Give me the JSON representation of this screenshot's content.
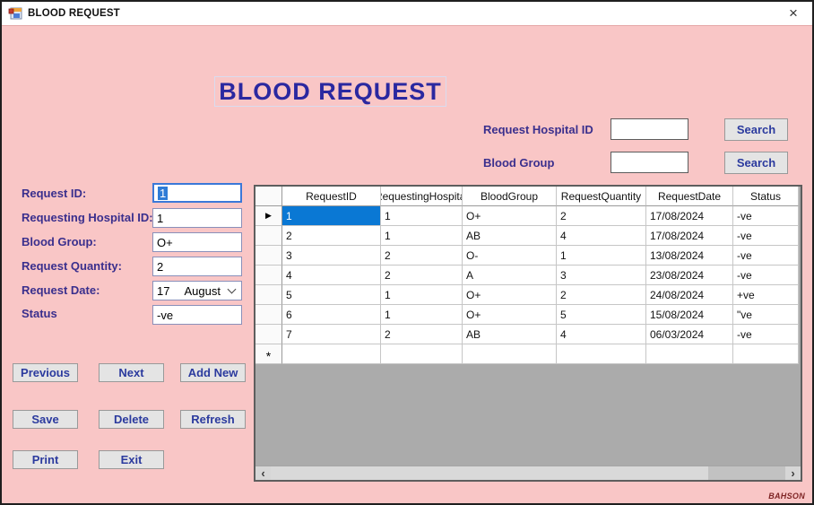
{
  "window": {
    "title": "BLOOD REQUEST",
    "close_glyph": "×"
  },
  "heading": {
    "text": "BLOOD REQUEST"
  },
  "search": {
    "rows": [
      {
        "label": "Request Hospital ID",
        "value": "",
        "button": "Search"
      },
      {
        "label": "Blood Group",
        "value": "",
        "button": "Search"
      }
    ]
  },
  "form": {
    "fields": [
      {
        "label": "Request ID:",
        "value": "1"
      },
      {
        "label": "Requesting Hospital ID:",
        "value": "1"
      },
      {
        "label": "Blood Group:",
        "value": "O+"
      },
      {
        "label": "Request Quantity:",
        "value": "2"
      },
      {
        "label": "Request Date:",
        "day": "17",
        "month": "August"
      },
      {
        "label": "Status",
        "value": "-ve"
      }
    ]
  },
  "buttons": {
    "previous": "Previous",
    "next": "Next",
    "add_new": "Add New",
    "save": "Save",
    "delete": "Delete",
    "refresh": "Refresh",
    "print": "Print",
    "exit": "Exit"
  },
  "grid": {
    "columns": [
      "RequestID",
      "RequestingHospital",
      "BloodGroup",
      "RequestQuantity",
      "RequestDate",
      "Status"
    ],
    "rows": [
      [
        "1",
        "1",
        "O+",
        "2",
        "17/08/2024",
        "-ve"
      ],
      [
        "2",
        "1",
        "AB",
        "4",
        "17/08/2024",
        "-ve"
      ],
      [
        "3",
        "2",
        "O-",
        "1",
        "13/08/2024",
        "-ve"
      ],
      [
        "4",
        "2",
        "A",
        "3",
        "23/08/2024",
        "-ve"
      ],
      [
        "5",
        "1",
        "O+",
        "2",
        "24/08/2024",
        "+ve"
      ],
      [
        "6",
        "1",
        "O+",
        "5",
        "15/08/2024",
        "\"ve"
      ],
      [
        "7",
        "2",
        "AB",
        "4",
        "06/03/2024",
        "-ve"
      ]
    ],
    "selected": {
      "row": 0,
      "col": 0
    },
    "current_row_marker": "▶",
    "new_row_marker": "*"
  },
  "scrollbar": {
    "left_arrow": "‹",
    "right_arrow": "›"
  },
  "watermark": "BAHSON",
  "colors": {
    "background": "#f9c6c6",
    "heading_text": "#2a28a0",
    "label_text": "#3a2f8d",
    "button_text": "#2b3a9e",
    "selection": "#0a78d4",
    "grid_empty": "#ababab"
  }
}
